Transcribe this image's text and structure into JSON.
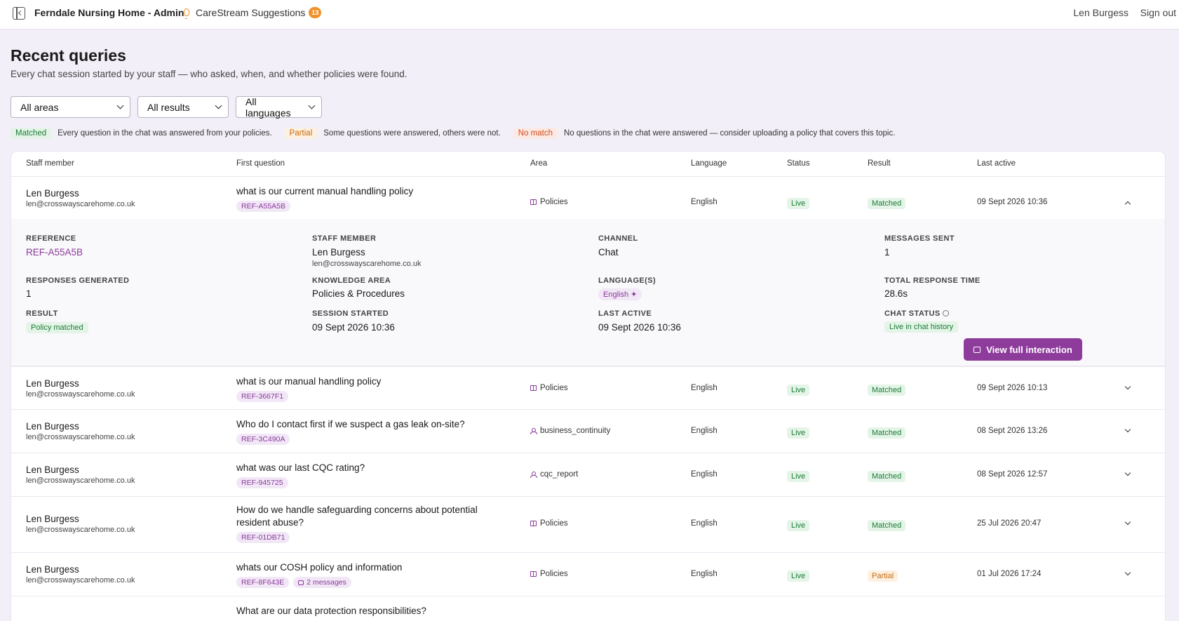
{
  "header": {
    "app_title": "Ferndale Nursing Home - Admin",
    "suggestions_label": "CareStream Suggestions",
    "suggestions_count": "13",
    "user_name": "Len Burgess",
    "signout_label": "Sign out"
  },
  "page": {
    "title": "Recent queries",
    "subtitle": "Every chat session started by your staff — who asked, when, and whether policies were found."
  },
  "filters": {
    "area": "All areas",
    "result": "All results",
    "language": "All languages"
  },
  "legend": {
    "matched_label": "Matched",
    "matched_desc": "Every question in the chat was answered from your policies.",
    "partial_label": "Partial",
    "partial_desc": "Some questions were answered, others were not.",
    "nomatch_label": "No match",
    "nomatch_desc": "No questions in the chat were answered — consider uploading a policy that covers this topic."
  },
  "table": {
    "columns": [
      "Staff member",
      "First question",
      "Area",
      "Language",
      "Status",
      "Result",
      "Last active"
    ],
    "rows": [
      {
        "name": "Len Burgess",
        "email": "len@crosswayscarehome.co.uk",
        "question": "what is our current manual handling policy",
        "ref": "REF-A55A5B",
        "area": "Policies",
        "language": "English",
        "status": "Live",
        "result": "Matched",
        "last_active": "09 Sept 2026 10:36"
      },
      {
        "name": "Len Burgess",
        "email": "len@crosswayscarehome.co.uk",
        "question": "what is our manual handling policy",
        "ref": "REF-3667F1",
        "area": "Policies",
        "language": "English",
        "status": "Live",
        "result": "Matched",
        "last_active": "09 Sept 2026 10:13"
      },
      {
        "name": "Len Burgess",
        "email": "len@crosswayscarehome.co.uk",
        "question": "Who do I contact first if we suspect a gas leak on-site?",
        "ref": "REF-3C490A",
        "area": "business_continuity",
        "language": "English",
        "status": "Live",
        "result": "Matched",
        "last_active": "08 Sept 2026 13:26"
      },
      {
        "name": "Len Burgess",
        "email": "len@crosswayscarehome.co.uk",
        "question": "what was our last CQC rating?",
        "ref": "REF-945725",
        "area": "cqc_report",
        "language": "English",
        "status": "Live",
        "result": "Matched",
        "last_active": "08 Sept 2026 12:57"
      },
      {
        "name": "Len Burgess",
        "email": "len@crosswayscarehome.co.uk",
        "question": "How do we handle safeguarding concerns about potential resident abuse?",
        "ref": "REF-01DB71",
        "area": "Policies",
        "language": "English",
        "status": "Live",
        "result": "Matched",
        "last_active": "25 Jul 2026 20:47"
      },
      {
        "name": "Len Burgess",
        "email": "len@crosswayscarehome.co.uk",
        "question": "whats our COSH policy and information",
        "ref": "REF-8F643E",
        "messages": "2 messages",
        "area": "Policies",
        "language": "English",
        "status": "Live",
        "result": "Partial",
        "last_active": "01 Jul 2026 17:24"
      },
      {
        "question": "What are our data protection responsibilities?"
      }
    ]
  },
  "details": {
    "reference_label": "Reference",
    "reference": "REF-A55A5B",
    "staff_label": "Staff member",
    "staff_name": "Len Burgess",
    "staff_email": "len@crosswayscarehome.co.uk",
    "channel_label": "Channel",
    "channel": "Chat",
    "messages_label": "Messages sent",
    "messages": "1",
    "responses_label": "Responses generated",
    "responses": "1",
    "knowledge_label": "Knowledge area",
    "knowledge": "Policies & Procedures",
    "languages_label": "Language(s)",
    "language_chip": "English ✦",
    "response_time_label": "Total response time",
    "response_time": "28.6s",
    "result_label": "Result",
    "result": "Policy matched",
    "session_label": "Session started",
    "session": "09 Sept 2026 10:36",
    "last_active_label": "Last active",
    "last_active": "09 Sept 2026 10:36",
    "chat_status_label": "Chat status",
    "chat_status": "Live in chat history",
    "view_button": "View full interaction"
  },
  "colors": {
    "accent": "#8e3c9c",
    "matched": "#1a7a36",
    "partial": "#c86b13",
    "nomatch": "#d04a1a",
    "background": "#f3eff8"
  },
  "icons": [
    "sidebar-toggle-icon",
    "lightbulb-icon",
    "book-icon",
    "people-icon",
    "message-icon",
    "info-icon",
    "chevron-down-icon",
    "chevron-up-icon"
  ]
}
